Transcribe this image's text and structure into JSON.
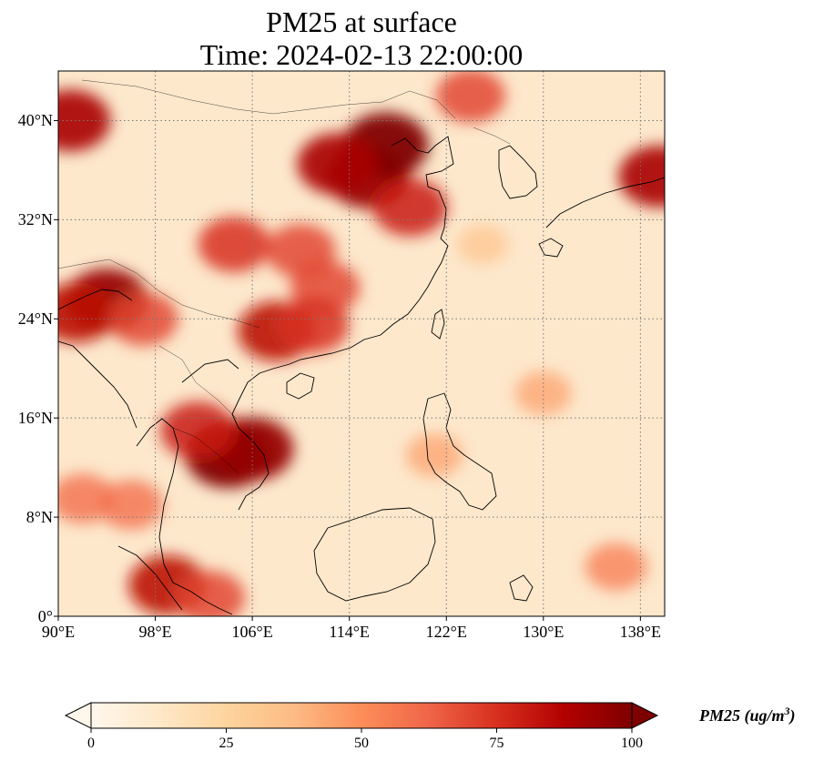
{
  "title": {
    "line1": "PM25 at surface",
    "line2": "Time: 2024-02-13 22:00:00"
  },
  "map": {
    "projection": "PlateCarree",
    "lon_range": [
      90,
      140
    ],
    "lat_range": [
      0,
      44
    ],
    "gridlines": {
      "style": "dotted",
      "color": "#777777"
    },
    "coastline_color": "#000000"
  },
  "lat_ticks": [
    {
      "value": 40,
      "label": "40°N"
    },
    {
      "value": 32,
      "label": "32°N"
    },
    {
      "value": 24,
      "label": "24°N"
    },
    {
      "value": 16,
      "label": "16°N"
    },
    {
      "value": 8,
      "label": "8°N"
    },
    {
      "value": 0,
      "label": "0°"
    }
  ],
  "lon_ticks": [
    {
      "value": 90,
      "label": "90°E"
    },
    {
      "value": 98,
      "label": "98°E"
    },
    {
      "value": 106,
      "label": "106°E"
    },
    {
      "value": 114,
      "label": "114°E"
    },
    {
      "value": 122,
      "label": "122°E"
    },
    {
      "value": 130,
      "label": "130°E"
    },
    {
      "value": 138,
      "label": "138°E"
    }
  ],
  "colorbar": {
    "colormap": "OrRd",
    "min": 0,
    "max": 100,
    "extend": "both",
    "ticks": [
      "0",
      "25",
      "50",
      "75",
      "100"
    ],
    "label_main": "PM25 (ug/m",
    "label_sup": "3",
    "label_close": ")",
    "stops": [
      "#fff7ec",
      "#fee8c8",
      "#fdd49e",
      "#fdbb84",
      "#fc8d59",
      "#ef6548",
      "#d7301f",
      "#b30000",
      "#7f0000"
    ]
  },
  "chart_data": {
    "type": "heatmap",
    "variable": "PM25",
    "units": "ug/m3",
    "background_value": 8,
    "hotspots": [
      {
        "lon": 115.5,
        "lat": 35.5,
        "value": 95
      },
      {
        "lon": 117.0,
        "lat": 38.0,
        "value": 100
      },
      {
        "lon": 113.0,
        "lat": 36.5,
        "value": 90
      },
      {
        "lon": 119.0,
        "lat": 33.0,
        "value": 80
      },
      {
        "lon": 110.0,
        "lat": 29.5,
        "value": 70
      },
      {
        "lon": 104.5,
        "lat": 30.0,
        "value": 75
      },
      {
        "lon": 112.0,
        "lat": 26.5,
        "value": 70
      },
      {
        "lon": 108.0,
        "lat": 23.0,
        "value": 85
      },
      {
        "lon": 111.0,
        "lat": 23.5,
        "value": 75
      },
      {
        "lon": 104.0,
        "lat": 13.0,
        "value": 100
      },
      {
        "lon": 106.0,
        "lat": 13.5,
        "value": 95
      },
      {
        "lon": 101.5,
        "lat": 15.0,
        "value": 80
      },
      {
        "lon": 94.0,
        "lat": 25.5,
        "value": 95
      },
      {
        "lon": 91.5,
        "lat": 24.5,
        "value": 85
      },
      {
        "lon": 97.0,
        "lat": 24.0,
        "value": 70
      },
      {
        "lon": 92.0,
        "lat": 9.5,
        "value": 60
      },
      {
        "lon": 96.0,
        "lat": 9.0,
        "value": 60
      },
      {
        "lon": 91.0,
        "lat": 40.0,
        "value": 90
      },
      {
        "lon": 139.5,
        "lat": 35.5,
        "value": 90
      },
      {
        "lon": 124.0,
        "lat": 42.0,
        "value": 70
      },
      {
        "lon": 99.0,
        "lat": 2.5,
        "value": 85
      },
      {
        "lon": 102.5,
        "lat": 1.5,
        "value": 70
      },
      {
        "lon": 136.0,
        "lat": 4.0,
        "value": 55
      },
      {
        "lon": 130.0,
        "lat": 18.0,
        "value": 45
      },
      {
        "lon": 125.0,
        "lat": 30.0,
        "value": 35
      },
      {
        "lon": 121.0,
        "lat": 13.0,
        "value": 45
      }
    ]
  }
}
